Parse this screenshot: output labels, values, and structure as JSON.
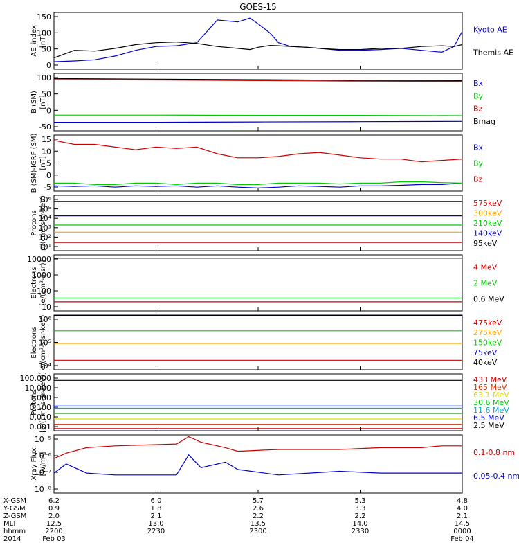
{
  "title": "GOES-15",
  "ephemeris": {
    "row_labels": [
      "X-GSM",
      "Y-GSM",
      "Z-GSM",
      "MLT",
      "hhmm",
      "2014"
    ],
    "columns": [
      [
        "6.2",
        "0.9",
        "2.0",
        "12.5",
        "2200",
        "Feb 03"
      ],
      [
        "6.0",
        "1.8",
        "2.1",
        "13.0",
        "2230",
        ""
      ],
      [
        "5.7",
        "2.6",
        "2.2",
        "13.5",
        "2300",
        ""
      ],
      [
        "5.3",
        "3.3",
        "2.2",
        "14.0",
        "2330",
        ""
      ],
      [
        "4.8",
        "4.0",
        "2.1",
        "14.5",
        "0000",
        "Feb 04"
      ]
    ]
  },
  "chart_data": [
    {
      "type": "line",
      "ylabel": [
        "AE_index",
        "[nT]"
      ],
      "yticks": [
        "150",
        "100",
        "50",
        "0"
      ],
      "ylim": [
        0,
        150
      ],
      "x": [
        0,
        0.05,
        0.1,
        0.15,
        0.2,
        0.25,
        0.3,
        0.35,
        0.4,
        0.45,
        0.48,
        0.5,
        0.53,
        0.55,
        0.58,
        0.62,
        0.65,
        0.7,
        0.75,
        0.8,
        0.85,
        0.9,
        0.95,
        0.98,
        1.0
      ],
      "series": [
        {
          "name": "Kyoto AE",
          "color": "#0000cc",
          "values": [
            20,
            22,
            25,
            35,
            50,
            60,
            62,
            70,
            130,
            125,
            135,
            120,
            95,
            70,
            60,
            58,
            55,
            50,
            50,
            52,
            55,
            50,
            45,
            60,
            100
          ]
        },
        {
          "name": "Themis AE",
          "color": "#000000",
          "values": [
            30,
            50,
            48,
            55,
            65,
            70,
            72,
            68,
            60,
            55,
            52,
            58,
            63,
            62,
            60,
            58,
            55,
            52,
            52,
            55,
            55,
            60,
            62,
            60,
            65
          ]
        }
      ]
    },
    {
      "type": "line",
      "ylabel": [
        "B (SM)",
        "[nT]"
      ],
      "yticks": [
        "100",
        "50",
        "0",
        "-50"
      ],
      "ylim": [
        -60,
        140
      ],
      "x": [
        0,
        0.25,
        0.5,
        0.75,
        1.0
      ],
      "series": [
        {
          "name": "Bx",
          "color": "#0000cc",
          "values": [
            -30,
            -30,
            -29,
            -28,
            -27
          ]
        },
        {
          "name": "By",
          "color": "#00cc00",
          "values": [
            -5,
            -5,
            -6,
            -6,
            -7
          ]
        },
        {
          "name": "Bz",
          "color": "#cc0000",
          "values": [
            118,
            117,
            115,
            113,
            112
          ]
        },
        {
          "name": "Bmag",
          "color": "#000000",
          "values": [
            122,
            120,
            118,
            116,
            115
          ]
        }
      ]
    },
    {
      "type": "line",
      "ylabel": [
        "B (SM)-IGRF (SM)",
        "[nT]"
      ],
      "yticks": [
        "15",
        "10",
        "5",
        "0",
        "-5"
      ],
      "ylim": [
        -5,
        16
      ],
      "x": [
        0,
        0.05,
        0.1,
        0.15,
        0.2,
        0.25,
        0.3,
        0.35,
        0.4,
        0.45,
        0.5,
        0.55,
        0.6,
        0.65,
        0.7,
        0.75,
        0.8,
        0.85,
        0.9,
        0.95,
        1.0
      ],
      "series": [
        {
          "name": "Bx",
          "color": "#0000cc",
          "values": [
            -3,
            -3.2,
            -3,
            -3.5,
            -3,
            -3.2,
            -3,
            -3.5,
            -3,
            -3.5,
            -3.8,
            -3.5,
            -3,
            -3.2,
            -3.5,
            -3,
            -3,
            -2.8,
            -2.5,
            -2.5,
            -2
          ]
        },
        {
          "name": "By",
          "color": "#00cc00",
          "values": [
            -2,
            -2,
            -2.5,
            -2.5,
            -2,
            -2,
            -2.5,
            -2,
            -2,
            -2.5,
            -2.5,
            -2,
            -2,
            -2,
            -2.3,
            -2,
            -2,
            -1.5,
            -1.5,
            -1.8,
            -2
          ]
        },
        {
          "name": "Bz",
          "color": "#cc0000",
          "values": [
            14,
            12.5,
            12.5,
            11.5,
            10.5,
            11.5,
            11,
            11.5,
            9,
            7.5,
            7.5,
            8,
            9,
            9.5,
            8.5,
            7.5,
            7,
            7,
            6,
            6.5,
            7
          ]
        }
      ]
    },
    {
      "type": "line",
      "ylabel": [
        "Protons",
        "p/(cm²-s-sr-keV)"
      ],
      "yticks": [
        "10⁶",
        "10⁵",
        "10⁴",
        "10³",
        "10²",
        "10¹"
      ],
      "log": true,
      "ylim": [
        1,
        6.4
      ],
      "x": [
        0,
        0.5,
        1.0
      ],
      "series": [
        {
          "name": "575keV",
          "color": "#cc0000",
          "values": [
            1.8,
            1.8,
            1.8
          ]
        },
        {
          "name": "300keV",
          "color": "#ffa500",
          "values": [
            2.8,
            2.8,
            2.8
          ]
        },
        {
          "name": "210keV",
          "color": "#00cc00",
          "values": [
            3.5,
            3.5,
            3.5
          ]
        },
        {
          "name": "140keV",
          "color": "#0000cc",
          "values": [
            4.4,
            4.4,
            4.4
          ]
        },
        {
          "name": "95keV",
          "color": "#000000",
          "values": [
            5.8,
            5.8,
            5.8
          ]
        }
      ]
    },
    {
      "type": "line",
      "ylabel": [
        "Electrons",
        "[e/(cm²-s-sr)]"
      ],
      "yticks": [
        "10000",
        "1000",
        "100",
        "10"
      ],
      "log": true,
      "ylim": [
        0.5,
        4.2
      ],
      "x": [
        0,
        0.5,
        1.0
      ],
      "series": [
        {
          "name": "4 MeV",
          "color": "#cc0000",
          "values": [
            1.1,
            1.1,
            1.1
          ]
        },
        {
          "name": "2 MeV",
          "color": "#00cc00",
          "values": [
            1.35,
            1.35,
            1.35
          ]
        },
        {
          "name": "0.6 MeV",
          "color": "#000000",
          "values": [
            3.98,
            3.98,
            3.98
          ]
        }
      ]
    },
    {
      "type": "line",
      "ylabel": [
        "Electrons",
        "e/(cm²-s-sr-keV)"
      ],
      "yticks": [
        "10⁶",
        "10⁵",
        "10⁴"
      ],
      "log": true,
      "ylim": [
        3.4,
        6.0
      ],
      "x": [
        0,
        0.5,
        1.0
      ],
      "series": [
        {
          "name": "475keV",
          "color": "#cc0000",
          "values": [
            3.85,
            3.85,
            3.85
          ]
        },
        {
          "name": "275keV",
          "color": "#ffa500",
          "values": [
            4.65,
            4.65,
            4.65
          ]
        },
        {
          "name": "150keV",
          "color": "#00cc00",
          "values": [
            5.25,
            5.25,
            5.25
          ]
        },
        {
          "name": "75keV",
          "color": "#0000cc",
          "values": [
            6.2,
            6.2,
            6.2
          ]
        },
        {
          "name": "40keV",
          "color": "#000000",
          "values": [
            6.6,
            6.6,
            6.6
          ]
        }
      ]
    },
    {
      "type": "line",
      "ylabel": [
        "Protons",
        "[p/(cm²-s-sr-keV)]"
      ],
      "yticks": [
        "100.000",
        "10.000",
        "1.000",
        "0.100",
        "0.010",
        "0.001"
      ],
      "log": true,
      "ylim": [
        -3.2,
        2.1
      ],
      "x": [
        0,
        0.5,
        1.0
      ],
      "series": [
        {
          "name": "433 MeV",
          "color": "#cc0000",
          "values": [
            -3,
            -3,
            -3
          ]
        },
        {
          "name": "165 MeV",
          "color": "#cc3300",
          "values": [
            -2.6,
            -2.6,
            -2.6
          ]
        },
        {
          "name": "63.1 MeV",
          "color": "#dddd00",
          "values": [
            -2.1,
            -2.1,
            -2.1
          ]
        },
        {
          "name": "30.6 MeV",
          "color": "#00cc00",
          "values": [
            -1.6,
            -1.6,
            -1.6
          ]
        },
        {
          "name": "11.6 MeV",
          "color": "#00aacc",
          "values": [
            -1.1,
            -1.1,
            -1.1
          ]
        },
        {
          "name": "6.5 MeV",
          "color": "#0000cc",
          "values": [
            -0.9,
            -0.9,
            -0.9
          ]
        },
        {
          "name": "2.5 MeV",
          "color": "#000000",
          "values": [
            1.5,
            1.5,
            1.5
          ]
        }
      ]
    },
    {
      "type": "line",
      "ylabel": [
        "Xray Flux",
        "[W/m²]"
      ],
      "yticks": [
        "10⁻⁵",
        "10⁻⁶",
        "10⁻⁷",
        "10⁻⁸"
      ],
      "log": true,
      "ylim": [
        -8.1,
        -4.9
      ],
      "x": [
        0,
        0.03,
        0.08,
        0.15,
        0.3,
        0.33,
        0.36,
        0.42,
        0.45,
        0.55,
        0.7,
        0.8,
        0.9,
        0.95,
        1.0
      ],
      "series": [
        {
          "name": "0.1-0.8 nm",
          "color": "#cc0000",
          "values": [
            -6.2,
            -5.9,
            -5.6,
            -5.5,
            -5.4,
            -5.0,
            -5.3,
            -5.6,
            -5.8,
            -5.7,
            -5.7,
            -5.6,
            -5.6,
            -5.5,
            -5.5
          ]
        },
        {
          "name": "0.05-0.4 nm",
          "color": "#0000cc",
          "values": [
            -7.0,
            -6.5,
            -7.0,
            -7.1,
            -7.1,
            -6.0,
            -6.7,
            -6.4,
            -6.8,
            -7.1,
            -6.9,
            -7.0,
            -7.0,
            -7.0,
            -7.0
          ]
        }
      ]
    }
  ]
}
